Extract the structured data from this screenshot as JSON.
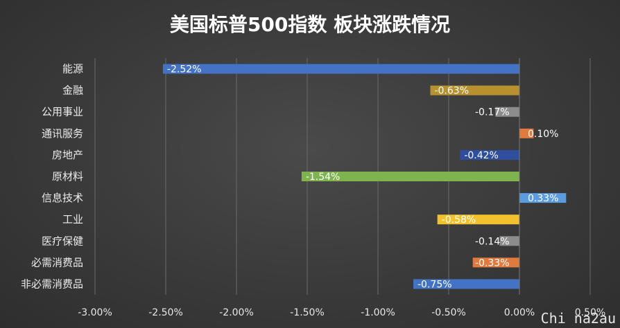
{
  "chart_data": {
    "type": "bar",
    "orientation": "horizontal",
    "title": "美国标普500指数 板块涨跌情况",
    "categories": [
      "能源",
      "金融",
      "公用事业",
      "通讯服务",
      "房地产",
      "原材料",
      "信息技术",
      "工业",
      "医疗保健",
      "必需消费品",
      "非必需消费品"
    ],
    "values": [
      -2.52,
      -0.63,
      -0.17,
      0.1,
      -0.42,
      -1.54,
      0.33,
      -0.58,
      -0.14,
      -0.33,
      -0.75
    ],
    "value_labels": [
      "-2.52%",
      "-0.63%",
      "-0.17%",
      "0.10%",
      "-0.42%",
      "-1.54%",
      "0.33%",
      "-0.58%",
      "-0.14%",
      "-0.33%",
      "-0.75%"
    ],
    "colors": [
      "#4472c4",
      "#b8912f",
      "#8c8c8c",
      "#e07a3f",
      "#2f4f9e",
      "#7fb34d",
      "#5b9be0",
      "#f2c12e",
      "#8c8c8c",
      "#e07a3f",
      "#4472c4"
    ],
    "xlim": [
      -3.0,
      0.5
    ],
    "xticks": [
      -3.0,
      -2.5,
      -2.0,
      -1.5,
      -1.0,
      -0.5,
      0.0,
      0.5
    ],
    "xtick_labels": [
      "-3.00%",
      "-2.50%",
      "-2.00%",
      "-1.50%",
      "-1.00%",
      "-0.50%",
      "0.00%",
      "0.50%"
    ],
    "grid": true,
    "xlabel": "",
    "ylabel": ""
  },
  "watermark": "Chi na2au"
}
